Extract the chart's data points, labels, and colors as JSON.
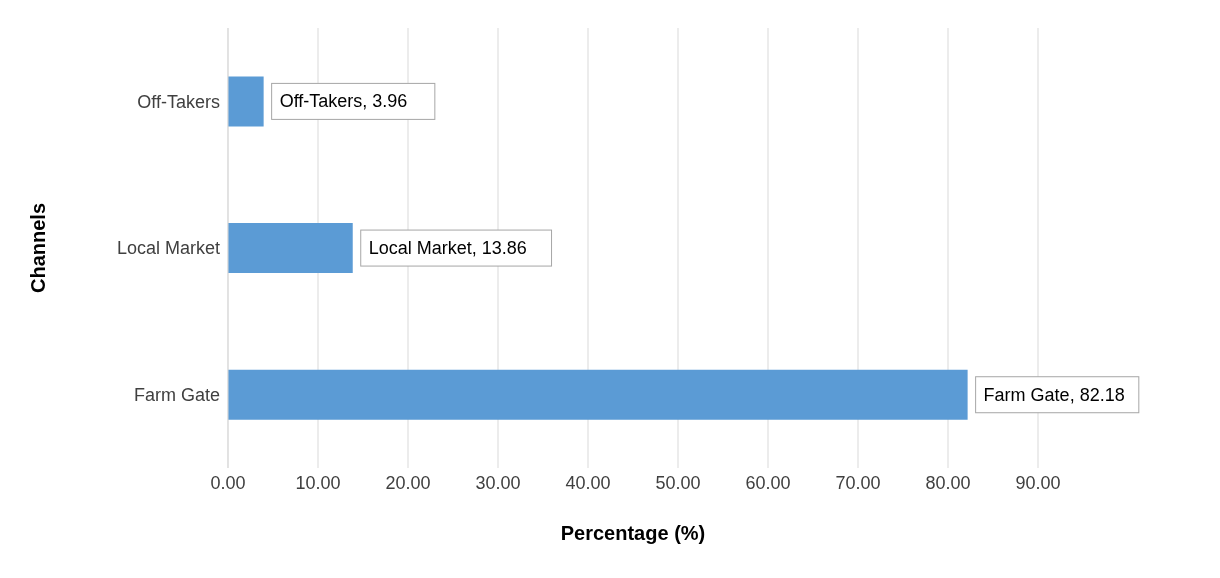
{
  "chart_data": {
    "type": "bar",
    "orientation": "horizontal",
    "xlabel": "Percentage (%)",
    "ylabel": "Channels",
    "categories": [
      "Off-Takers",
      "Local Market",
      "Farm Gate"
    ],
    "values": [
      3.96,
      13.86,
      82.18
    ],
    "color": "#5b9bd5",
    "value_labels": [
      "Off-Takers, 3.96",
      "Local Market, 13.86",
      "Farm Gate, 82.18"
    ],
    "xlim": [
      0,
      90
    ],
    "xticks": [
      {
        "value": 0,
        "label": "0.00"
      },
      {
        "value": 10,
        "label": "10.00"
      },
      {
        "value": 20,
        "label": "20.00"
      },
      {
        "value": 30,
        "label": "30.00"
      },
      {
        "value": 40,
        "label": "40.00"
      },
      {
        "value": 50,
        "label": "50.00"
      },
      {
        "value": 60,
        "label": "60.00"
      },
      {
        "value": 70,
        "label": "70.00"
      },
      {
        "value": 80,
        "label": "80.00"
      },
      {
        "value": 90,
        "label": "90.00"
      }
    ],
    "grid": "x",
    "legend": false
  }
}
